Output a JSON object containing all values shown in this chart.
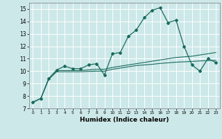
{
  "xlabel": "Humidex (Indice chaleur)",
  "xlim": [
    -0.5,
    23.5
  ],
  "ylim": [
    7,
    15.5
  ],
  "xticks": [
    0,
    1,
    2,
    3,
    4,
    5,
    6,
    7,
    8,
    9,
    10,
    11,
    12,
    13,
    14,
    15,
    16,
    17,
    18,
    19,
    20,
    21,
    22,
    23
  ],
  "yticks": [
    7,
    8,
    9,
    10,
    11,
    12,
    13,
    14,
    15
  ],
  "bg_color": "#cde8e8",
  "grid_color": "#ffffff",
  "line_color": "#1a6b5e",
  "line1_x": [
    0,
    1,
    2,
    3,
    4,
    5,
    6,
    7,
    8,
    9,
    10,
    11,
    12,
    13,
    14,
    15,
    16,
    17,
    18,
    19,
    20,
    21,
    22,
    23
  ],
  "line1_y": [
    7.5,
    7.8,
    9.4,
    10.1,
    10.4,
    10.2,
    10.2,
    10.5,
    10.6,
    9.7,
    11.4,
    11.5,
    12.8,
    13.3,
    14.3,
    14.9,
    15.1,
    13.9,
    14.1,
    12.0,
    10.5,
    10.0,
    11.0,
    10.7
  ],
  "line2_x": [
    0,
    1,
    2,
    3,
    4,
    5,
    6,
    7,
    8,
    9,
    10,
    11,
    12,
    13,
    14,
    15,
    16,
    17,
    18,
    19,
    20,
    21,
    22,
    23
  ],
  "line2_y": [
    7.5,
    7.8,
    9.4,
    10.05,
    10.05,
    10.05,
    10.05,
    10.1,
    10.15,
    10.15,
    10.3,
    10.4,
    10.5,
    10.6,
    10.7,
    10.8,
    10.9,
    11.0,
    11.1,
    11.15,
    11.2,
    11.3,
    11.4,
    11.5
  ],
  "line3_x": [
    0,
    1,
    2,
    3,
    4,
    5,
    6,
    7,
    8,
    9,
    10,
    11,
    12,
    13,
    14,
    15,
    16,
    17,
    18,
    19,
    20,
    21,
    22,
    23
  ],
  "line3_y": [
    7.5,
    7.8,
    9.35,
    9.95,
    9.95,
    9.95,
    9.95,
    9.98,
    10.0,
    10.0,
    10.15,
    10.25,
    10.35,
    10.45,
    10.5,
    10.55,
    10.62,
    10.67,
    10.72,
    10.75,
    10.78,
    10.82,
    10.85,
    10.88
  ]
}
